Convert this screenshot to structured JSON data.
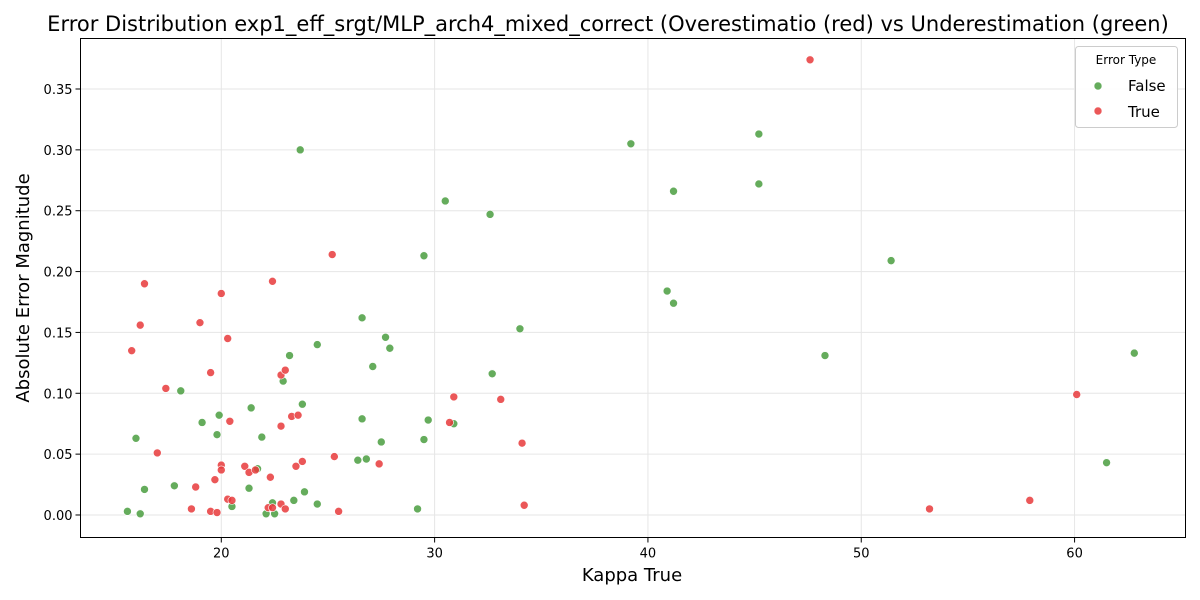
{
  "chart_data": {
    "type": "scatter",
    "title": "Error Distribution exp1_eff_srgt/MLP_arch4_mixed_correct (Overestimatio (red) vs Underestimation (green)",
    "xlabel": "Kappa True",
    "ylabel": "Absolute Error Magnitude",
    "xlim": [
      13.4,
      65.2
    ],
    "ylim": [
      -0.0185,
      0.3915
    ],
    "xticks": [
      20,
      30,
      40,
      50,
      60
    ],
    "xtick_labels": [
      "20",
      "30",
      "40",
      "50",
      "60"
    ],
    "yticks": [
      0.0,
      0.05,
      0.1,
      0.15,
      0.2,
      0.25,
      0.3,
      0.35
    ],
    "ytick_labels": [
      "0.00",
      "0.05",
      "0.10",
      "0.15",
      "0.20",
      "0.25",
      "0.30",
      "0.35"
    ],
    "grid": true,
    "legend": {
      "title": "Error Type",
      "position": "top-right"
    },
    "series": [
      {
        "name": "False",
        "color": "#4a9e3f",
        "points": [
          [
            15.6,
            0.003
          ],
          [
            16.0,
            0.063
          ],
          [
            16.2,
            0.001
          ],
          [
            16.4,
            0.021
          ],
          [
            17.8,
            0.024
          ],
          [
            18.1,
            0.102
          ],
          [
            19.1,
            0.076
          ],
          [
            19.8,
            0.066
          ],
          [
            19.9,
            0.082
          ],
          [
            20.5,
            0.007
          ],
          [
            21.3,
            0.022
          ],
          [
            21.4,
            0.088
          ],
          [
            21.7,
            0.038
          ],
          [
            21.9,
            0.064
          ],
          [
            22.1,
            0.001
          ],
          [
            22.4,
            0.01
          ],
          [
            22.5,
            0.001
          ],
          [
            22.9,
            0.11
          ],
          [
            23.2,
            0.131
          ],
          [
            23.4,
            0.012
          ],
          [
            23.7,
            0.3
          ],
          [
            23.8,
            0.091
          ],
          [
            23.9,
            0.019
          ],
          [
            24.5,
            0.14
          ],
          [
            24.5,
            0.009
          ],
          [
            26.4,
            0.045
          ],
          [
            26.6,
            0.162
          ],
          [
            26.6,
            0.079
          ],
          [
            26.8,
            0.046
          ],
          [
            27.1,
            0.122
          ],
          [
            27.5,
            0.06
          ],
          [
            27.7,
            0.146
          ],
          [
            27.9,
            0.137
          ],
          [
            29.2,
            0.005
          ],
          [
            29.5,
            0.213
          ],
          [
            29.5,
            0.062
          ],
          [
            29.7,
            0.078
          ],
          [
            30.5,
            0.258
          ],
          [
            30.9,
            0.075
          ],
          [
            32.6,
            0.247
          ],
          [
            32.7,
            0.116
          ],
          [
            34.0,
            0.153
          ],
          [
            39.2,
            0.305
          ],
          [
            40.9,
            0.184
          ],
          [
            41.2,
            0.266
          ],
          [
            41.2,
            0.174
          ],
          [
            45.2,
            0.313
          ],
          [
            45.2,
            0.272
          ],
          [
            48.3,
            0.131
          ],
          [
            51.4,
            0.209
          ],
          [
            61.5,
            0.043
          ],
          [
            62.8,
            0.133
          ]
        ]
      },
      {
        "name": "True",
        "color": "#e8393b",
        "points": [
          [
            15.8,
            0.135
          ],
          [
            16.2,
            0.156
          ],
          [
            16.4,
            0.19
          ],
          [
            17.0,
            0.051
          ],
          [
            17.4,
            0.104
          ],
          [
            18.6,
            0.005
          ],
          [
            18.8,
            0.023
          ],
          [
            19.0,
            0.158
          ],
          [
            19.5,
            0.117
          ],
          [
            19.5,
            0.003
          ],
          [
            19.7,
            0.029
          ],
          [
            19.8,
            0.002
          ],
          [
            20.0,
            0.041
          ],
          [
            20.0,
            0.037
          ],
          [
            20.0,
            0.182
          ],
          [
            20.3,
            0.013
          ],
          [
            20.3,
            0.145
          ],
          [
            20.4,
            0.077
          ],
          [
            20.5,
            0.012
          ],
          [
            21.1,
            0.04
          ],
          [
            21.3,
            0.035
          ],
          [
            21.6,
            0.037
          ],
          [
            22.2,
            0.006
          ],
          [
            22.4,
            0.192
          ],
          [
            22.3,
            0.031
          ],
          [
            22.4,
            0.006
          ],
          [
            22.8,
            0.115
          ],
          [
            22.8,
            0.073
          ],
          [
            22.8,
            0.009
          ],
          [
            23.0,
            0.119
          ],
          [
            23.0,
            0.005
          ],
          [
            23.3,
            0.081
          ],
          [
            23.6,
            0.082
          ],
          [
            23.5,
            0.04
          ],
          [
            23.8,
            0.044
          ],
          [
            25.2,
            0.214
          ],
          [
            25.3,
            0.048
          ],
          [
            25.5,
            0.003
          ],
          [
            27.4,
            0.042
          ],
          [
            30.7,
            0.076
          ],
          [
            30.9,
            0.097
          ],
          [
            33.1,
            0.095
          ],
          [
            34.1,
            0.059
          ],
          [
            34.2,
            0.008
          ],
          [
            47.6,
            0.374
          ],
          [
            53.2,
            0.005
          ],
          [
            57.9,
            0.012
          ],
          [
            60.1,
            0.099
          ]
        ]
      }
    ]
  }
}
